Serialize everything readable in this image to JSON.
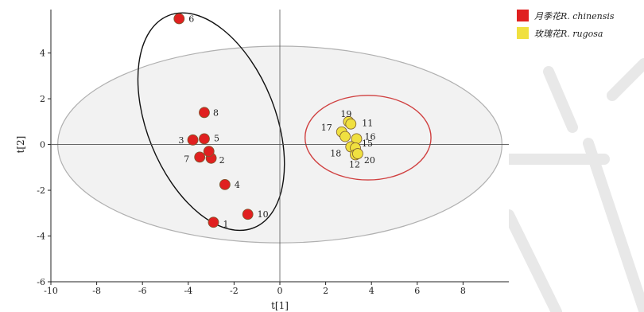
{
  "chart_data": {
    "type": "scatter",
    "xlabel": "t[1]",
    "ylabel": "t[2]",
    "xlim": [
      -10,
      10
    ],
    "ylim": [
      -6,
      5.9
    ],
    "xticks": [
      -10,
      -8,
      -6,
      -4,
      -2,
      0,
      2,
      4,
      6,
      8
    ],
    "yticks": [
      -6,
      -4,
      -2,
      0,
      2,
      4
    ],
    "series": [
      {
        "name": "月季花R. chinensis",
        "color": "#e02020",
        "points": [
          {
            "label": "6",
            "x": -4.4,
            "y": 5.5
          },
          {
            "label": "8",
            "x": -3.3,
            "y": 1.4
          },
          {
            "label": "3",
            "x": -3.8,
            "y": 0.2
          },
          {
            "label": "5",
            "x": -3.3,
            "y": 0.25
          },
          {
            "label": "7",
            "x": -3.5,
            "y": -0.55
          },
          {
            "label": "2",
            "x": -3.0,
            "y": -0.6
          },
          {
            "label": "",
            "x": -3.1,
            "y": -0.3
          },
          {
            "label": "4",
            "x": -2.4,
            "y": -1.75
          },
          {
            "label": "1",
            "x": -2.9,
            "y": -3.4
          },
          {
            "label": "10",
            "x": -1.4,
            "y": -3.05
          }
        ]
      },
      {
        "name": "玫瑰花R. rugosa",
        "color": "#f0e040",
        "points": [
          {
            "label": "19",
            "x": 3.0,
            "y": 1.0
          },
          {
            "label": "11",
            "x": 3.1,
            "y": 0.9
          },
          {
            "label": "17",
            "x": 2.7,
            "y": 0.55
          },
          {
            "label": "",
            "x": 2.85,
            "y": 0.35
          },
          {
            "label": "16",
            "x": 3.35,
            "y": 0.25
          },
          {
            "label": "18",
            "x": 3.1,
            "y": -0.1
          },
          {
            "label": "15",
            "x": 3.3,
            "y": -0.15
          },
          {
            "label": "12",
            "x": 3.3,
            "y": -0.45
          },
          {
            "label": "20",
            "x": 3.4,
            "y": -0.4
          }
        ]
      }
    ],
    "ellipses": [
      {
        "role": "hotelling-t2",
        "cx": 0,
        "cy": 0,
        "rx": 9.7,
        "ry": 4.3,
        "color": "#b0b0b0"
      },
      {
        "role": "group-chinensis",
        "cx": -3.0,
        "cy": 1.0,
        "rx": 2.8,
        "ry": 5.0,
        "angle_deg": -22,
        "color": "#111111"
      },
      {
        "role": "group-rugosa",
        "cx": 3.85,
        "cy": 0.3,
        "rx": 2.75,
        "ry": 1.85,
        "color": "#d04040"
      }
    ],
    "legend_position": "top-right"
  }
}
